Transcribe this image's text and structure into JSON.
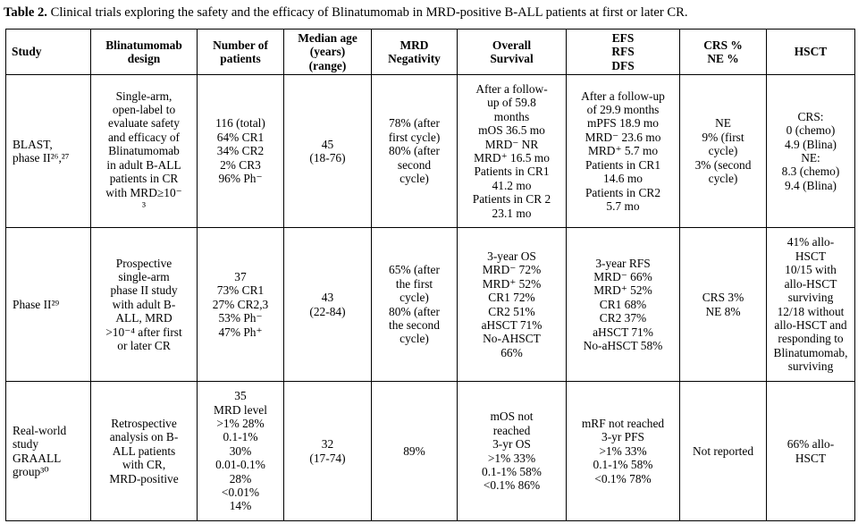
{
  "caption": {
    "label": "Table 2.",
    "text": " Clinical trials exploring the safety and the efficacy of Blinatumomab in MRD-positive B-ALL patients at first or later CR."
  },
  "headers": {
    "study": "Study",
    "design": "Blinatumomab\ndesign",
    "patients": "Number of\npatients",
    "age": "Median age\n(years)\n(range)",
    "mrd": "MRD\nNegativity",
    "os": "Overall\nSurvival",
    "efs": "EFS\nRFS\nDFS",
    "crs": "CRS %\nNE %",
    "hsct": "HSCT"
  },
  "rows": [
    {
      "study": "BLAST,\nphase II²⁶,²⁷",
      "design": "Single-arm,\nopen-label to\nevaluate safety\nand efficacy of\nBlinatumomab\nin adult B-ALL\npatients in CR\nwith MRD≥10⁻\n³",
      "patients": "116 (total)\n64% CR1\n34% CR2\n2% CR3\n96% Ph⁻",
      "age": "45\n(18-76)",
      "mrd": "78% (after\nfirst cycle)\n80% (after\nsecond\ncycle)",
      "os": "After a follow-\nup of 59.8\nmonths\nmOS 36.5 mo\nMRD⁻ NR\nMRD⁺ 16.5 mo\nPatients in CR1\n41.2 mo\nPatients in CR 2\n23.1 mo",
      "efs": "After a follow-up\nof 29.9 months\nmPFS 18.9 mo\nMRD⁻ 23.6 mo\nMRD⁺ 5.7 mo\nPatients in CR1\n14.6 mo\nPatients in CR2\n5.7 mo",
      "crs": "NE\n9% (first\ncycle)\n3% (second\ncycle)",
      "hsct": "CRS:\n0 (chemo)\n4.9 (Blina)\nNE:\n8.3 (chemo)\n9.4 (Blina)"
    },
    {
      "study": "Phase II²⁹",
      "design": "Prospective\nsingle-arm\nphase II study\nwith adult B-\nALL, MRD\n>10⁻⁴ after first\nor later CR",
      "patients": "37\n73% CR1\n27% CR2,3\n53% Ph⁻\n47% Ph⁺",
      "age": "43\n(22-84)",
      "mrd": "65% (after\nthe first\ncycle)\n80% (after\nthe second\ncycle)",
      "os": "3-year OS\nMRD⁻ 72%\nMRD⁺ 52%\nCR1 72%\nCR2 51%\naHSCT 71%\nNo-AHSCT\n66%",
      "efs": "3-year RFS\nMRD⁻ 66%\nMRD⁺ 52%\nCR1 68%\nCR2 37%\naHSCT 71%\nNo-aHSCT 58%",
      "crs": "CRS 3%\nNE 8%",
      "hsct": "41% allo-\nHSCT\n10/15 with\nallo-HSCT\nsurviving\n12/18 without\nallo-HSCT and\nresponding to\nBlinatumomab,\nsurviving"
    },
    {
      "study": "Real-world\nstudy\nGRAALL\ngroup³⁰",
      "design": "Retrospective\nanalysis on B-\nALL patients\nwith CR,\nMRD-positive",
      "patients": "35\nMRD level\n>1% 28%\n0.1-1%\n30%\n0.01-0.1%\n28%\n<0.01%\n14%",
      "age": "32\n(17-74)",
      "mrd": "89%",
      "os": "mOS not\nreached\n3-yr OS\n>1% 33%\n0.1-1% 58%\n<0.1% 86%",
      "efs": "mRF not reached\n3-yr PFS\n>1% 33%\n0.1-1% 58%\n<0.1% 78%",
      "crs": "Not reported",
      "hsct": "66% allo-\nHSCT"
    }
  ]
}
